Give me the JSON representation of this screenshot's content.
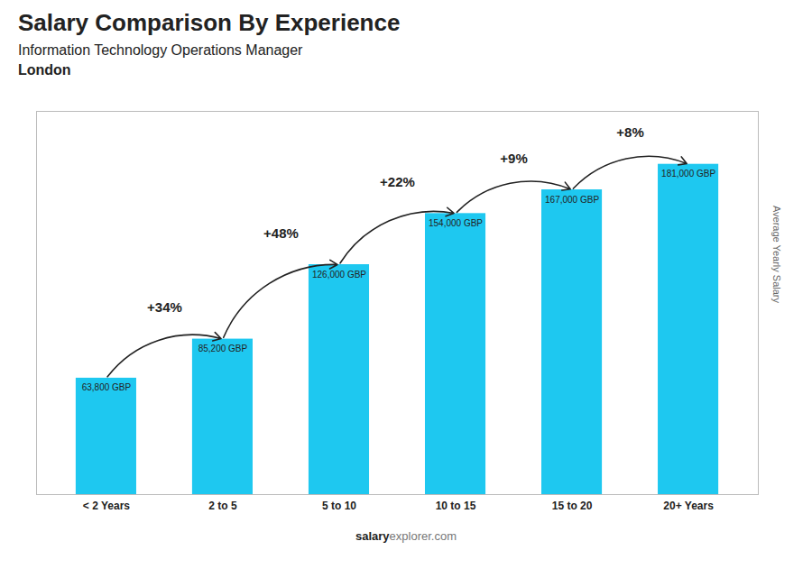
{
  "chart_data": {
    "type": "bar",
    "title": "Salary Comparison By Experience",
    "subtitle": "Information Technology Operations Manager",
    "location": "London",
    "categories": [
      "< 2 Years",
      "2 to 5",
      "5 to 10",
      "10 to 15",
      "15 to 20",
      "20+ Years"
    ],
    "values": [
      63800,
      85200,
      126000,
      154000,
      167000,
      181000
    ],
    "value_labels": [
      "63,800 GBP",
      "85,200 GBP",
      "126,000 GBP",
      "154,000 GBP",
      "167,000 GBP",
      "181,000 GBP"
    ],
    "data_labels": true,
    "color": "#1ec8f0",
    "ylim": [
      0,
      210000
    ],
    "y_label": "Average Yearly Salary",
    "tick_labels": "x",
    "grid": false,
    "annotations": [
      {
        "text": "+34%",
        "from": "< 2 Years",
        "to": "2 to 5"
      },
      {
        "text": "+48%",
        "from": "2 to 5",
        "to": "5 to 10"
      },
      {
        "text": "+22%",
        "from": "5 to 10",
        "to": "10 to 15"
      },
      {
        "text": "+9%",
        "from": "10 to 15",
        "to": "15 to 20"
      },
      {
        "text": "+8%",
        "from": "15 to 20",
        "to": "20+ Years"
      }
    ],
    "footer": [
      "salary",
      "explorer.com"
    ]
  }
}
